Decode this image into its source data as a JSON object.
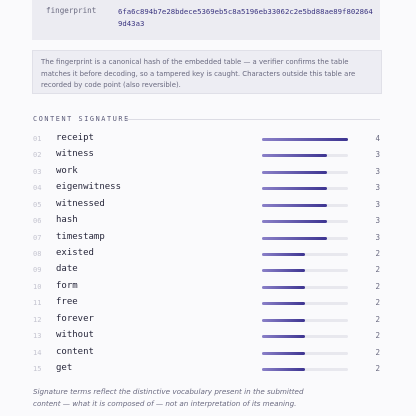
{
  "fingerprint": {
    "label": "fingerprint",
    "value": "6fa6c894b7e28bdece5369eb5c8a5196eb33062c2e5bd88ae89f8028649d43a3"
  },
  "note": "The fingerprint is a canonical hash of the embedded table — a verifier confirms the table matches it before decoding, so a tampered key is caught. Characters outside this table are recorded by code point (also reversible).",
  "signature": {
    "title": "CONTENT SIGNATURE",
    "rows": [
      {
        "index": "01",
        "term": "receipt",
        "count": 4
      },
      {
        "index": "02",
        "term": "witness",
        "count": 3
      },
      {
        "index": "03",
        "term": "work",
        "count": 3
      },
      {
        "index": "04",
        "term": "eigenwitness",
        "count": 3
      },
      {
        "index": "05",
        "term": "witnessed",
        "count": 3
      },
      {
        "index": "06",
        "term": "hash",
        "count": 3
      },
      {
        "index": "07",
        "term": "timestamp",
        "count": 3
      },
      {
        "index": "08",
        "term": "existed",
        "count": 2
      },
      {
        "index": "09",
        "term": "date",
        "count": 2
      },
      {
        "index": "10",
        "term": "form",
        "count": 2
      },
      {
        "index": "11",
        "term": "free",
        "count": 2
      },
      {
        "index": "12",
        "term": "forever",
        "count": 2
      },
      {
        "index": "13",
        "term": "without",
        "count": 2
      },
      {
        "index": "14",
        "term": "content",
        "count": 2
      },
      {
        "index": "15",
        "term": "get",
        "count": 2
      }
    ]
  },
  "footer": "Signature terms reflect the distinctive vocabulary present in the submitted content — what it is composed of — not an interpretation of its meaning."
}
